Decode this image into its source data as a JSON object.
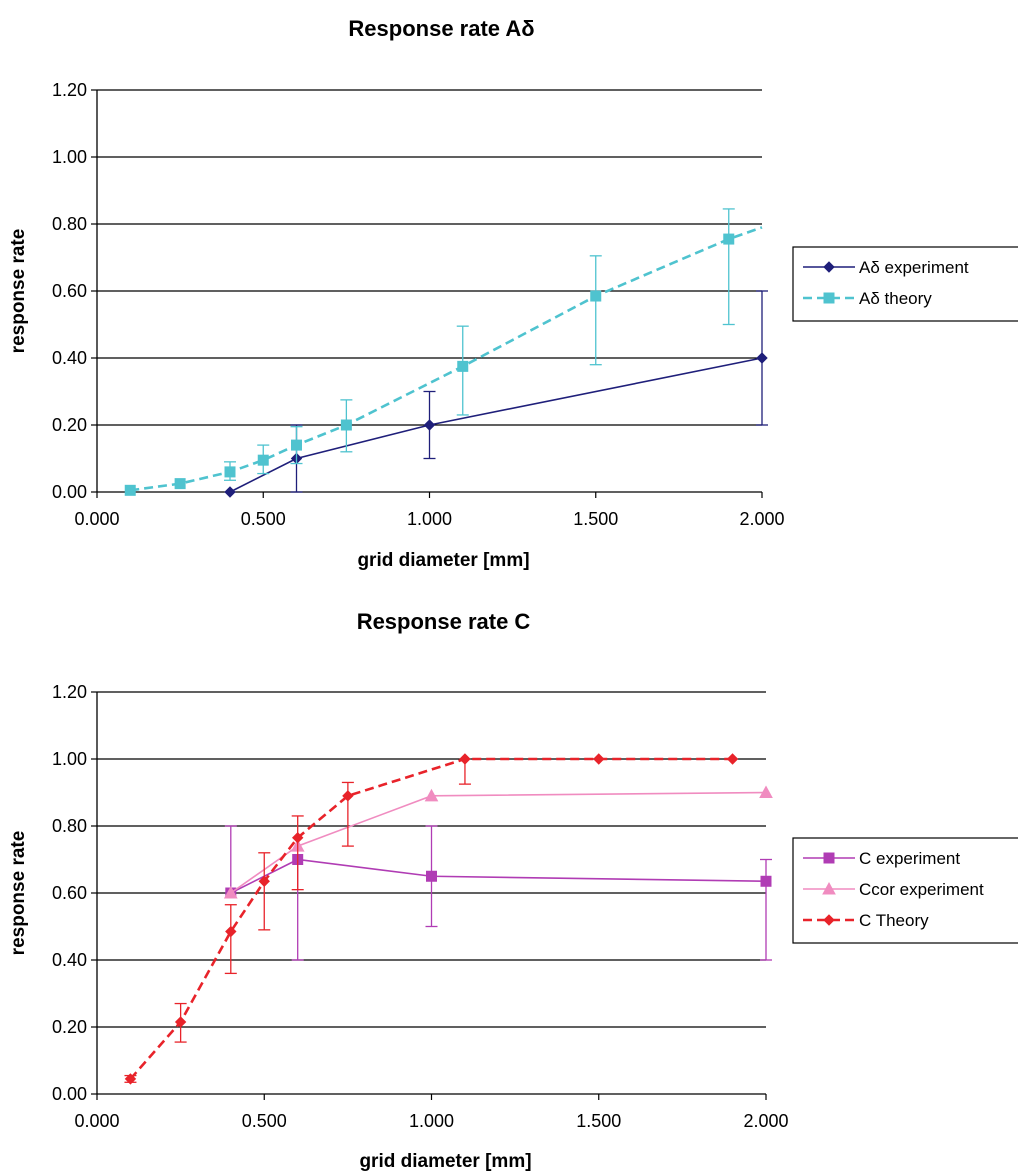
{
  "chart_data": [
    {
      "type": "line",
      "title": "Response rate Aδ",
      "xlabel": "grid diameter [mm]",
      "ylabel": "response rate",
      "xlim": [
        0,
        2
      ],
      "ylim": [
        0,
        1.2
      ],
      "x_ticks": [
        "0.000",
        "0.500",
        "1.000",
        "1.500",
        "2.000"
      ],
      "y_ticks": [
        "0.00",
        "0.20",
        "0.40",
        "0.60",
        "0.80",
        "1.00",
        "1.20"
      ],
      "grid": "horizontal",
      "legend_position": "right",
      "series": [
        {
          "name": "Aδ experiment",
          "color": "#1f1f7a",
          "line_style": "solid",
          "marker": "diamond",
          "x": [
            0.4,
            0.6,
            1.0,
            2.0
          ],
          "y": [
            0.0,
            0.1,
            0.2,
            0.4
          ],
          "err_low": [
            0.0,
            0.1,
            0.1,
            0.2
          ],
          "err_high": [
            0.0,
            0.1,
            0.1,
            0.2
          ]
        },
        {
          "name": "Aδ theory",
          "color": "#4fc3cf",
          "line_style": "dashed",
          "marker": "square",
          "x": [
            0.1,
            0.25,
            0.4,
            0.5,
            0.6,
            0.75,
            1.1,
            1.5,
            1.9,
            2.0
          ],
          "y": [
            0.005,
            0.025,
            0.06,
            0.095,
            0.14,
            0.2,
            0.375,
            0.585,
            0.755,
            0.79
          ],
          "markers": [
            true,
            true,
            true,
            true,
            true,
            true,
            true,
            true,
            true,
            false
          ],
          "err_low": [
            0.0,
            0.0,
            0.025,
            0.04,
            0.055,
            0.08,
            0.145,
            0.205,
            0.255,
            0.0
          ],
          "err_high": [
            0.0,
            0.0,
            0.03,
            0.045,
            0.055,
            0.075,
            0.12,
            0.12,
            0.09,
            0.0
          ]
        }
      ]
    },
    {
      "type": "line",
      "title": "Response rate C",
      "xlabel": "grid diameter [mm]",
      "ylabel": "response rate",
      "xlim": [
        0,
        2
      ],
      "ylim": [
        0,
        1.2
      ],
      "x_ticks": [
        "0.000",
        "0.500",
        "1.000",
        "1.500",
        "2.000"
      ],
      "y_ticks": [
        "0.00",
        "0.20",
        "0.40",
        "0.60",
        "0.80",
        "1.00",
        "1.20"
      ],
      "grid": "horizontal",
      "legend_position": "right",
      "series": [
        {
          "name": "C experiment",
          "color": "#b03cb4",
          "line_style": "solid",
          "marker": "square",
          "x": [
            0.4,
            0.6,
            1.0,
            2.0
          ],
          "y": [
            0.6,
            0.7,
            0.65,
            0.635
          ],
          "err_low": [
            0.0,
            0.3,
            0.15,
            0.235
          ],
          "err_high": [
            0.2,
            0.0,
            0.15,
            0.065
          ]
        },
        {
          "name": "Ccor experiment",
          "color": "#f08cc0",
          "line_style": "solid",
          "marker": "triangle",
          "x": [
            0.4,
            0.6,
            1.0,
            2.0
          ],
          "y": [
            0.6,
            0.74,
            0.89,
            0.9
          ]
        },
        {
          "name": "C Theory",
          "color": "#e8232a",
          "line_style": "dashed",
          "marker": "diamond",
          "x": [
            0.1,
            0.25,
            0.4,
            0.5,
            0.6,
            0.75,
            1.1,
            1.5,
            1.9
          ],
          "y": [
            0.045,
            0.215,
            0.485,
            0.635,
            0.765,
            0.89,
            1.0,
            1.0,
            1.0
          ],
          "err_low": [
            0.01,
            0.06,
            0.125,
            0.145,
            0.155,
            0.15,
            0.075,
            0.0,
            0.0
          ],
          "err_high": [
            0.01,
            0.055,
            0.08,
            0.085,
            0.065,
            0.04,
            0.0,
            0.0,
            0.0
          ]
        }
      ]
    }
  ]
}
